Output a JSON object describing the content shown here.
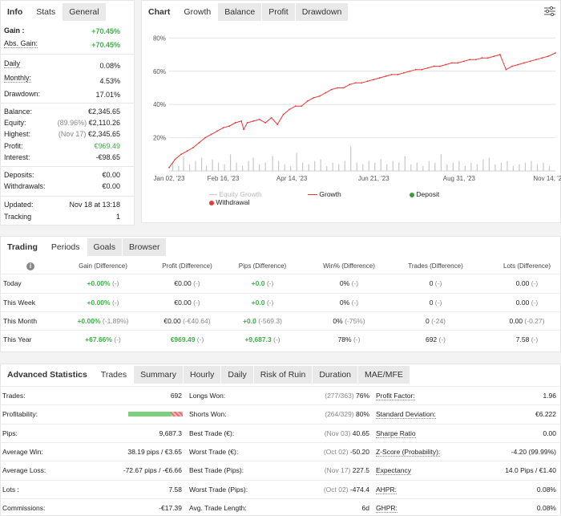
{
  "info": {
    "tabs": [
      "Info",
      "Stats",
      "General"
    ],
    "gain_label": "Gain :",
    "gain_value": "+70.45%",
    "abs_gain_label": "Abs. Gain:",
    "abs_gain_value": "+70.45%",
    "daily_label": "Daily",
    "daily_value": "0.08%",
    "monthly_label": "Monthly:",
    "monthly_value": "4.53%",
    "drawdown_label": "Drawdown:",
    "drawdown_value": "17.01%",
    "balance_label": "Balance:",
    "balance_value": "€2,345.65",
    "equity_label": "Equity:",
    "equity_note": "(89.96%)",
    "equity_value": "€2,110.26",
    "highest_label": "Highest:",
    "highest_note": "(Nov 17)",
    "highest_value": "€2,345.65",
    "profit_label": "Profit:",
    "profit_value": "€969.49",
    "interest_label": "Interest:",
    "interest_value": "-€98.65",
    "deposits_label": "Deposits:",
    "deposits_value": "€0.00",
    "withdrawals_label": "Withdrawals:",
    "withdrawals_value": "€0.00",
    "updated_label": "Updated:",
    "updated_value": "Nov 18 at 13:18",
    "tracking_label": "Tracking",
    "tracking_value": "1"
  },
  "chart_tabs": [
    "Chart",
    "Growth",
    "Balance",
    "Profit",
    "Drawdown"
  ],
  "legend": {
    "equity": "Equity Growth",
    "growth": "Growth",
    "deposit": "Deposit",
    "withdrawal": "Withdrawal"
  },
  "colors": {
    "growth": "#e53935",
    "green": "#3fae49",
    "bar": "#c8c8c8",
    "deposit": "#3d9b3d"
  },
  "chart_data": {
    "type": "line",
    "title": "Growth",
    "y_tick_labels": [
      "80%",
      "60%",
      "40%",
      "20%"
    ],
    "y_ticks": [
      80,
      60,
      40,
      20
    ],
    "ylim": [
      0,
      85
    ],
    "x_tick_labels": [
      "Jan 02, '23",
      "Feb 16, '23",
      "Apr 14, '23",
      "Jun 21, '23",
      "Aug 31, '23",
      "Nov 14, '23"
    ],
    "x_tick_positions": [
      0,
      45,
      102,
      170,
      241,
      316
    ],
    "xlim": [
      0,
      321
    ],
    "series": [
      {
        "name": "Growth",
        "x": [
          0,
          5,
          10,
          15,
          20,
          25,
          30,
          35,
          40,
          45,
          50,
          55,
          60,
          62,
          65,
          70,
          75,
          80,
          85,
          90,
          95,
          100,
          105,
          110,
          115,
          120,
          125,
          130,
          135,
          140,
          145,
          150,
          155,
          160,
          165,
          170,
          175,
          180,
          185,
          190,
          195,
          200,
          205,
          210,
          215,
          220,
          225,
          230,
          235,
          240,
          245,
          250,
          255,
          260,
          265,
          270,
          275,
          280,
          285,
          290,
          295,
          300,
          305,
          310,
          315,
          321
        ],
        "values": [
          2,
          7,
          10,
          12,
          14,
          17,
          20,
          22,
          24,
          26,
          27,
          29,
          30,
          25,
          29,
          30,
          31,
          29,
          32,
          28,
          34,
          37,
          39,
          39,
          42,
          44,
          45,
          47,
          49,
          50,
          50,
          52,
          53,
          53,
          54,
          55,
          56,
          57,
          58,
          58,
          59,
          60,
          61,
          61,
          62,
          63,
          63,
          64,
          65,
          65,
          66,
          67,
          67,
          68,
          68,
          69,
          70,
          61,
          63,
          64,
          65,
          66,
          67,
          68,
          69,
          71
        ]
      },
      {
        "name": "Daily bars",
        "x": [
          3,
          8,
          12,
          17,
          22,
          27,
          31,
          36,
          41,
          46,
          51,
          56,
          61,
          66,
          70,
          75,
          80,
          86,
          91,
          96,
          101,
          106,
          111,
          116,
          121,
          126,
          131,
          136,
          141,
          146,
          151,
          156,
          161,
          166,
          171,
          176,
          181,
          186,
          191,
          196,
          201,
          206,
          211,
          216,
          221,
          226,
          231,
          236,
          241,
          246,
          251,
          256,
          261,
          266,
          271,
          276,
          281,
          286,
          291,
          296,
          301,
          306,
          311,
          316
        ],
        "values": [
          5,
          3,
          9,
          4,
          6,
          8,
          3,
          7,
          5,
          4,
          10,
          5,
          3,
          6,
          8,
          4,
          5,
          9,
          6,
          4,
          3,
          11,
          5,
          4,
          6,
          7,
          3,
          5,
          4,
          6,
          15,
          5,
          4,
          6,
          5,
          7,
          4,
          6,
          5,
          9,
          4,
          5,
          3,
          6,
          5,
          10,
          4,
          5,
          6,
          3,
          5,
          4,
          7,
          8,
          4,
          5,
          6,
          3,
          4,
          5,
          6,
          4,
          5,
          3
        ]
      }
    ]
  },
  "trading_tabs": [
    "Trading",
    "Periods",
    "Goals",
    "Browser"
  ],
  "periods": {
    "headers": [
      "Gain (Difference)",
      "Profit (Difference)",
      "Pips (Difference)",
      "Win% (Difference)",
      "Trades (Difference)",
      "Lots (Difference)"
    ],
    "rows": [
      {
        "label": "Today",
        "gain": "+0.00%",
        "gain_diff": "(-)",
        "profit": "€0.00",
        "profit_diff": "(-)",
        "pips": "+0.0",
        "pips_diff": "(-)",
        "win": "0%",
        "win_diff": "(-)",
        "trades": "0",
        "trades_diff": "(-)",
        "lots": "0.00",
        "lots_diff": "(-)"
      },
      {
        "label": "This Week",
        "gain": "+0.00%",
        "gain_diff": "(-)",
        "profit": "€0.00",
        "profit_diff": "(-)",
        "pips": "+0.0",
        "pips_diff": "(-)",
        "win": "0%",
        "win_diff": "(-)",
        "trades": "0",
        "trades_diff": "(-)",
        "lots": "0.00",
        "lots_diff": "(-)"
      },
      {
        "label": "This Month",
        "gain": "+0.00%",
        "gain_diff": "(-1.89%)",
        "profit": "€0.00",
        "profit_diff": "(-€40.64)",
        "pips": "+0.0",
        "pips_diff": "(-569.3)",
        "win": "0%",
        "win_diff": "(-75%)",
        "trades": "0",
        "trades_diff": "(-24)",
        "lots": "0.00",
        "lots_diff": "(-0.27)"
      },
      {
        "label": "This Year",
        "gain": "+67.66%",
        "gain_diff": "(-)",
        "profit": "€969.49",
        "profit_diff": "(-)",
        "pips": "+9,687.3",
        "pips_diff": "(-)",
        "win": "78%",
        "win_diff": "(-)",
        "trades": "692",
        "trades_diff": "(-)",
        "lots": "7.58",
        "lots_diff": "(-)"
      }
    ]
  },
  "adv_tabs": [
    "Advanced Statistics",
    "Trades",
    "Summary",
    "Hourly",
    "Daily",
    "Risk of Ruin",
    "Duration",
    "MAE/MFE"
  ],
  "adv": {
    "col1": [
      {
        "label": "Trades:",
        "value": "692"
      },
      {
        "label": "Profitability:",
        "value": ""
      },
      {
        "label": "Pips:",
        "value": "9,687.3"
      },
      {
        "label": "Average Win:",
        "value": "38.19 pips / €3.65"
      },
      {
        "label": "Average Loss:",
        "value": "-72.67 pips / -€6.66"
      },
      {
        "label": "Lots :",
        "value": "7.58"
      },
      {
        "label": "Commissions:",
        "value": "-€17.39"
      }
    ],
    "col2": [
      {
        "label": "Longs Won:",
        "note": "(277/363)",
        "value": "76%"
      },
      {
        "label": "Shorts Won:",
        "note": "(264/329)",
        "value": "80%"
      },
      {
        "label": "Best Trade (€):",
        "note": "(Nov 03)",
        "value": "40.65"
      },
      {
        "label": "Worst Trade (€):",
        "note": "(Oct 02)",
        "value": "-50.20"
      },
      {
        "label": "Best Trade (Pips):",
        "note": "(Nov 17)",
        "value": "227.5"
      },
      {
        "label": "Worst Trade (Pips):",
        "note": "(Oct 02)",
        "value": "-474.4"
      },
      {
        "label": "Avg. Trade Length:",
        "note": "",
        "value": "6d"
      }
    ],
    "col3": [
      {
        "label": "Profit Factor:",
        "value": "1.96"
      },
      {
        "label": "Standard Deviation:",
        "value": "€6.222"
      },
      {
        "label": "Sharpe Ratio",
        "value": "0.00"
      },
      {
        "label": "Z-Score (Probability):",
        "value": "-4.20 (99.99%)"
      },
      {
        "label": "Expectancy",
        "value": "14.0 Pips / €1.40"
      },
      {
        "label": "AHPR:",
        "value": "0.08%"
      },
      {
        "label": "GHPR:",
        "value": "0.08%"
      }
    ],
    "profitability_win_fraction": 0.78
  }
}
